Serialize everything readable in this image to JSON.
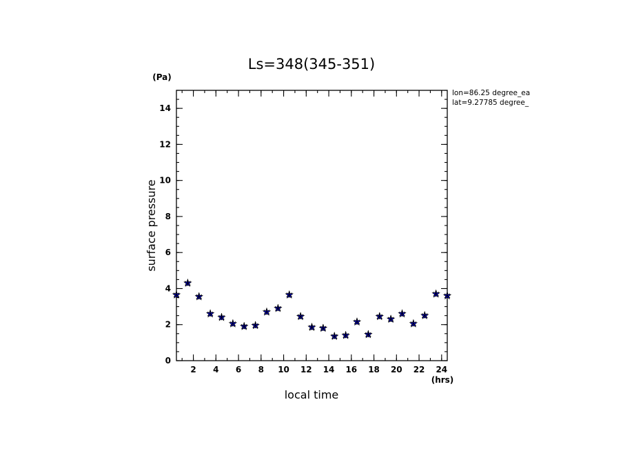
{
  "chart_data": {
    "type": "scatter",
    "title": "Ls=348(345-351)",
    "xlabel": "local time",
    "ylabel": "surface pressure",
    "x_unit": "(hrs)",
    "y_unit": "(Pa)",
    "xlim": [
      0.5,
      24.5
    ],
    "ylim": [
      0,
      15
    ],
    "x_ticks": [
      2,
      4,
      6,
      8,
      10,
      12,
      14,
      16,
      18,
      20,
      22,
      24
    ],
    "y_ticks": [
      0,
      2,
      4,
      6,
      8,
      10,
      12,
      14
    ],
    "grid": false,
    "marker_color": "#0000ff",
    "annotations": [
      "lon=86.25 degree_ea",
      "lat=9.27785 degree_"
    ],
    "series": [
      {
        "x": [
          0.5,
          1.5,
          2.5,
          3.5,
          4.5,
          5.5,
          6.5,
          7.5,
          8.5,
          9.5,
          10.5,
          11.5,
          12.5,
          13.5,
          14.5,
          15.5,
          16.5,
          17.5,
          18.5,
          19.5,
          20.5,
          21.5,
          22.5,
          23.5,
          24.5
        ],
        "y": [
          3.65,
          4.3,
          3.55,
          2.6,
          2.4,
          2.05,
          1.9,
          1.95,
          2.7,
          2.9,
          3.65,
          2.45,
          1.85,
          1.8,
          1.35,
          1.4,
          2.15,
          1.45,
          2.45,
          2.3,
          2.6,
          2.05,
          2.5,
          3.7,
          3.6
        ]
      }
    ]
  }
}
